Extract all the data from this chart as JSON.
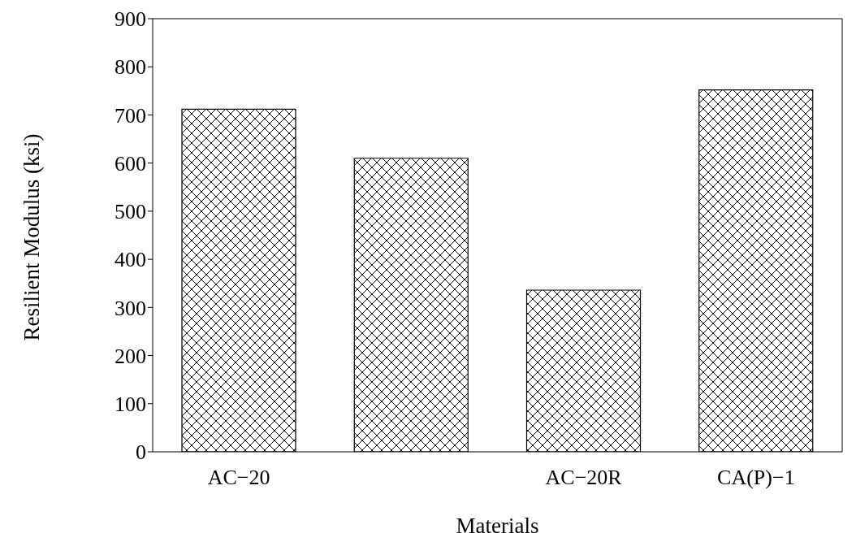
{
  "chart_data": {
    "type": "bar",
    "categories": [
      "AC−20",
      null,
      "AC−20R",
      "CA(P)−1"
    ],
    "values": [
      712,
      610,
      336,
      752
    ],
    "color": "#000000",
    "xlabel": "Materials",
    "ylabel": "Resilient Modulus (ksi)",
    "ylim": [
      0,
      900
    ],
    "yticks": [
      0,
      100,
      200,
      300,
      400,
      500,
      600,
      700,
      800,
      900
    ],
    "grid": false,
    "legend": false
  }
}
